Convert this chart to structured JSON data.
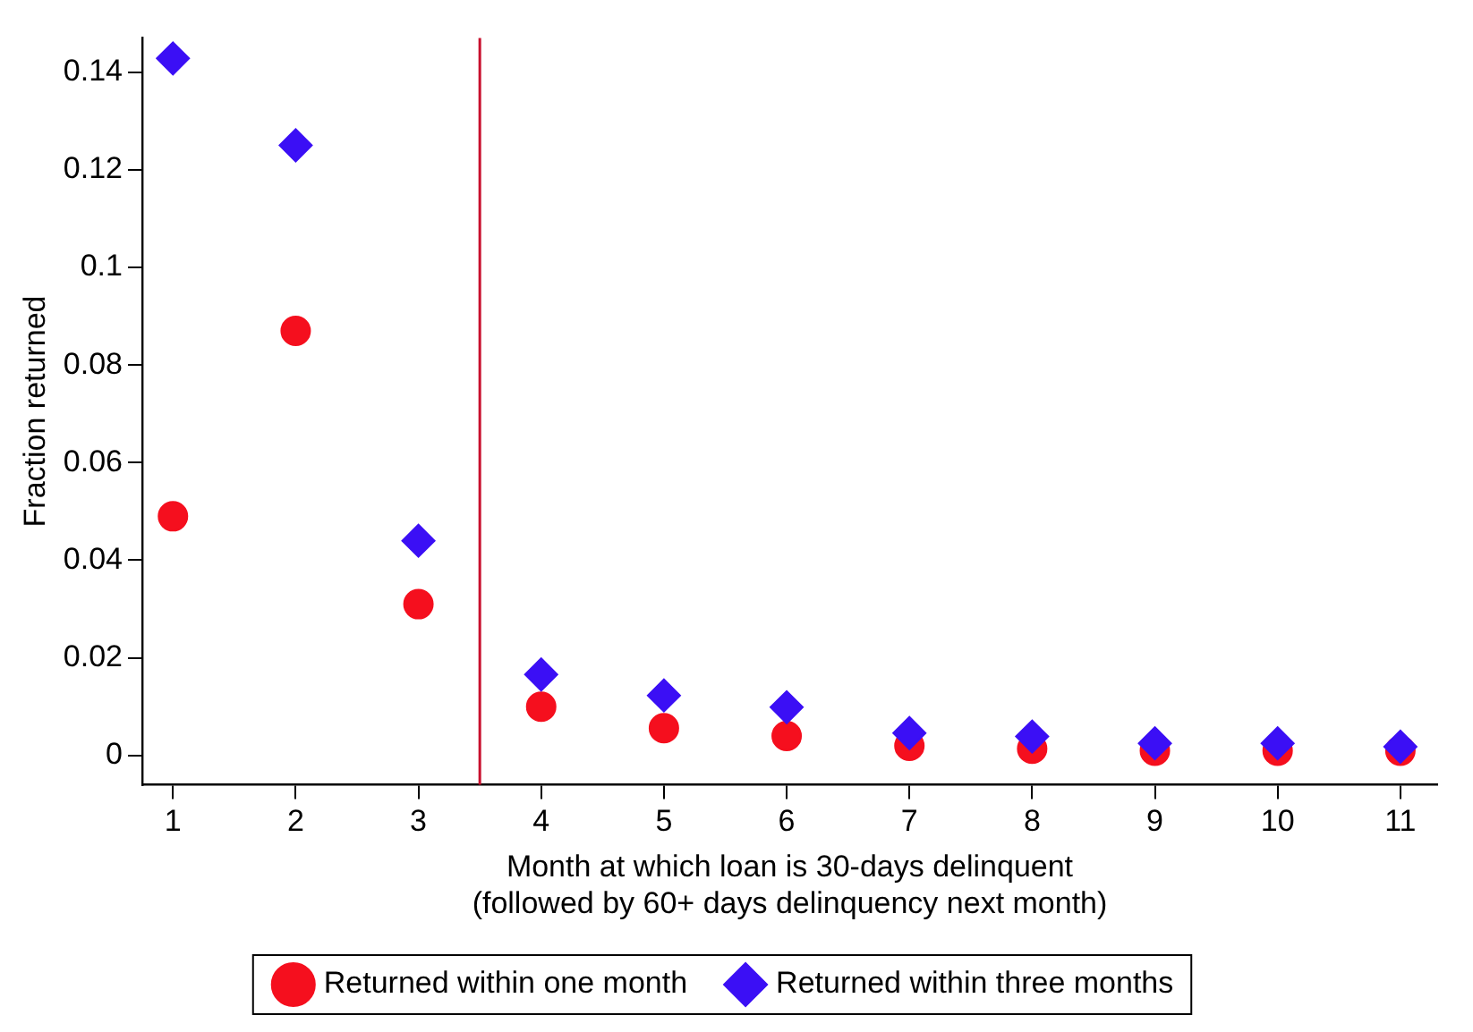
{
  "chart_data": {
    "type": "scatter",
    "xlabel": "Month at which loan is 30-days delinquent\n(followed by 60+ days delinquency next month)",
    "ylabel": "Fraction returned",
    "x": [
      1,
      2,
      3,
      4,
      5,
      6,
      7,
      8,
      9,
      10,
      11
    ],
    "series": [
      {
        "name": "Returned within one month",
        "color": "#f50f1e",
        "marker": "circle",
        "values": [
          0.049,
          0.087,
          0.031,
          0.01,
          0.0056,
          0.004,
          0.002,
          0.0014,
          0.001,
          0.001,
          0.001
        ]
      },
      {
        "name": "Returned within three months",
        "color": "#3b0ff5",
        "marker": "diamond",
        "values": [
          0.1428,
          0.125,
          0.044,
          0.0166,
          0.0123,
          0.0099,
          0.0046,
          0.0039,
          0.0025,
          0.0025,
          0.0018
        ]
      }
    ],
    "xlim": [
      0.75,
      11.3
    ],
    "xticks": [
      1,
      2,
      3,
      4,
      5,
      6,
      7,
      8,
      9,
      10,
      11
    ],
    "ylim": [
      -0.006,
      0.147
    ],
    "yticks": [
      0,
      0.02,
      0.04,
      0.06,
      0.08,
      0.1,
      0.12,
      0.14
    ],
    "ref_lines": [
      {
        "axis": "x",
        "value": 3.5,
        "color": "#c8102e"
      }
    ],
    "grid": false,
    "legend": "bottom"
  }
}
